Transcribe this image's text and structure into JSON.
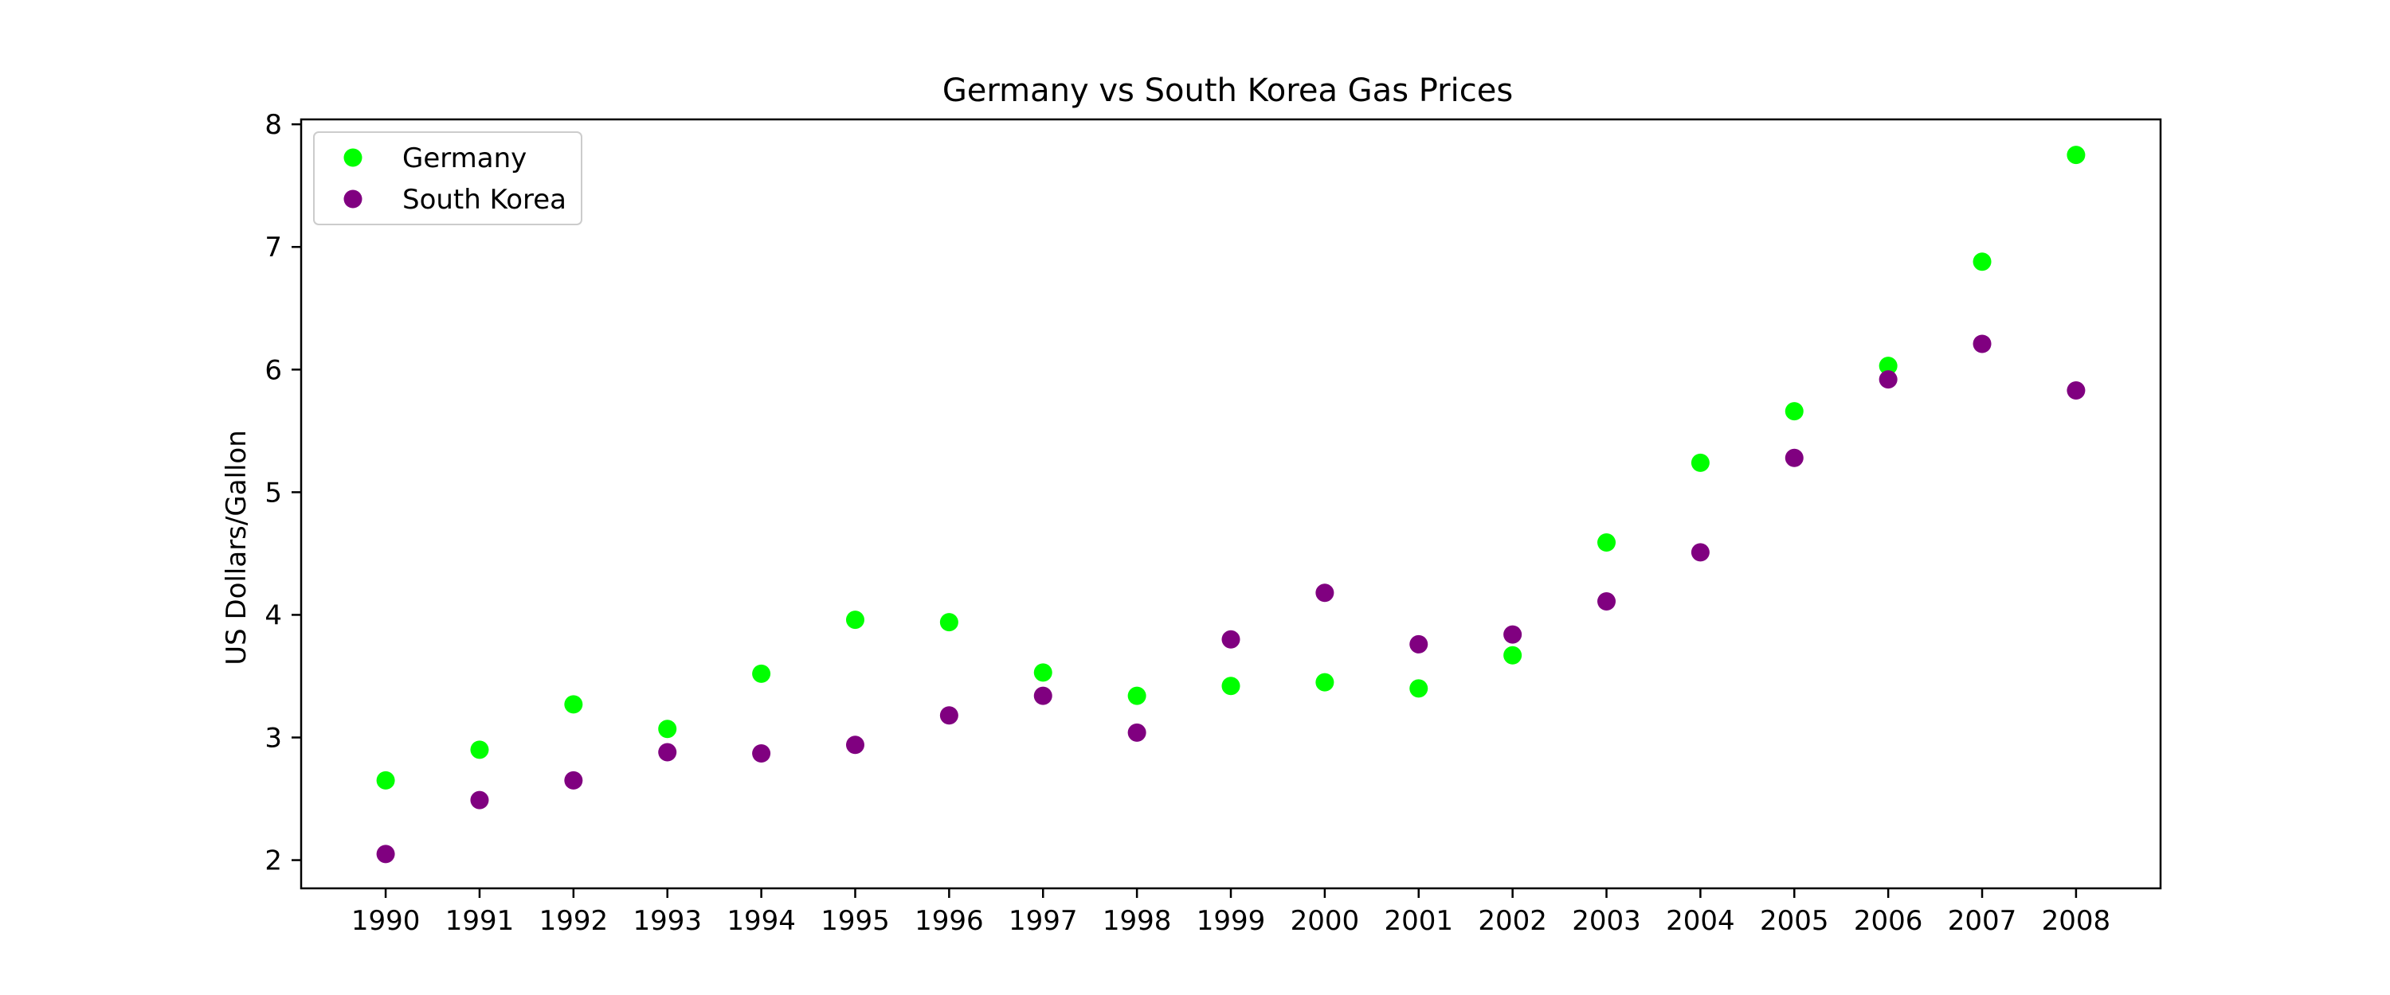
{
  "chart_data": {
    "type": "scatter",
    "title": "Germany vs South Korea Gas Prices",
    "xlabel": "",
    "ylabel": "US Dollars/Gallon",
    "x": [
      1990,
      1991,
      1992,
      1993,
      1994,
      1995,
      1996,
      1997,
      1998,
      1999,
      2000,
      2001,
      2002,
      2003,
      2004,
      2005,
      2006,
      2007,
      2008
    ],
    "x_tick_labels": [
      "1990",
      "1991",
      "1992",
      "1993",
      "1994",
      "1995",
      "1996",
      "1997",
      "1998",
      "1999",
      "2000",
      "2001",
      "2002",
      "2003",
      "2004",
      "2005",
      "2006",
      "2007",
      "2008"
    ],
    "y_ticks": [
      2,
      3,
      4,
      5,
      6,
      7,
      8
    ],
    "y_tick_labels": [
      "2",
      "3",
      "4",
      "5",
      "6",
      "7",
      "8"
    ],
    "xlim": [
      1989.1,
      2008.9
    ],
    "ylim": [
      1.77,
      8.04
    ],
    "grid": false,
    "legend_position": "upper-left",
    "series": [
      {
        "name": "Germany",
        "color": "#00ff00",
        "values": [
          2.65,
          2.9,
          3.27,
          3.07,
          3.52,
          3.96,
          3.94,
          3.53,
          3.34,
          3.42,
          3.45,
          3.4,
          3.67,
          4.59,
          5.24,
          5.66,
          6.03,
          6.88,
          7.75
        ]
      },
      {
        "name": "South Korea",
        "color": "#800080",
        "values": [
          2.05,
          2.49,
          2.65,
          2.88,
          2.87,
          2.94,
          3.18,
          3.34,
          3.04,
          3.8,
          4.18,
          3.76,
          3.84,
          4.11,
          4.51,
          5.28,
          5.92,
          6.21,
          5.83
        ]
      }
    ]
  }
}
